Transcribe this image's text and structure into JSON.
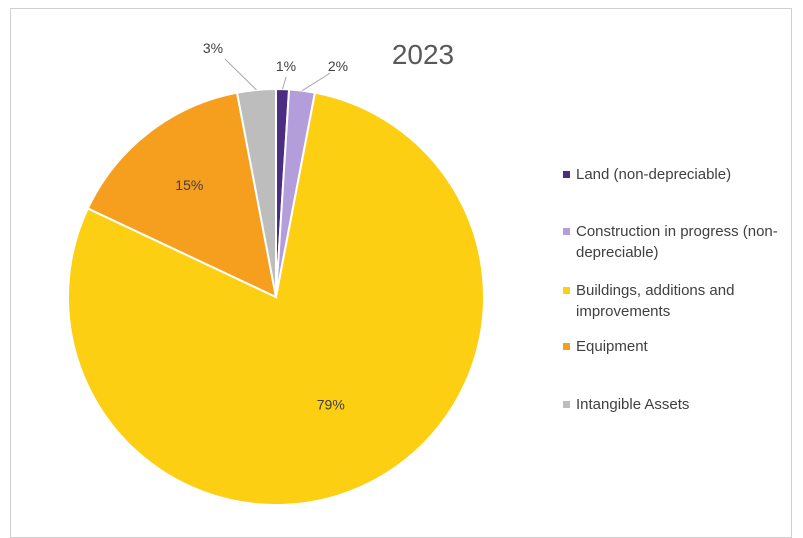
{
  "chart_data": {
    "type": "pie",
    "title": "2023",
    "categories": [
      "Land (non-depreciable)",
      "Construction in progress (non-depreciable)",
      "Buildings, additions and improvements",
      "Equipment",
      "Intangible Assets"
    ],
    "values": [
      1,
      2,
      79,
      15,
      3
    ],
    "labels": [
      "1%",
      "2%",
      "79%",
      "15%",
      "3%"
    ],
    "colors": [
      "#4b2e83",
      "#b39ddb",
      "#fccf13",
      "#f69e1e",
      "#bdbdbd"
    ],
    "legend_position": "right",
    "legend": [
      {
        "label": "Land (non-depreciable)",
        "color": "#4b2e83"
      },
      {
        "label": "Construction in progress (non-depreciable)",
        "color": "#b39ddb"
      },
      {
        "label": "Buildings, additions and improvements",
        "color": "#fccf13"
      },
      {
        "label": "Equipment",
        "color": "#f69e1e"
      },
      {
        "label": "Intangible Assets",
        "color": "#bdbdbd"
      }
    ]
  }
}
